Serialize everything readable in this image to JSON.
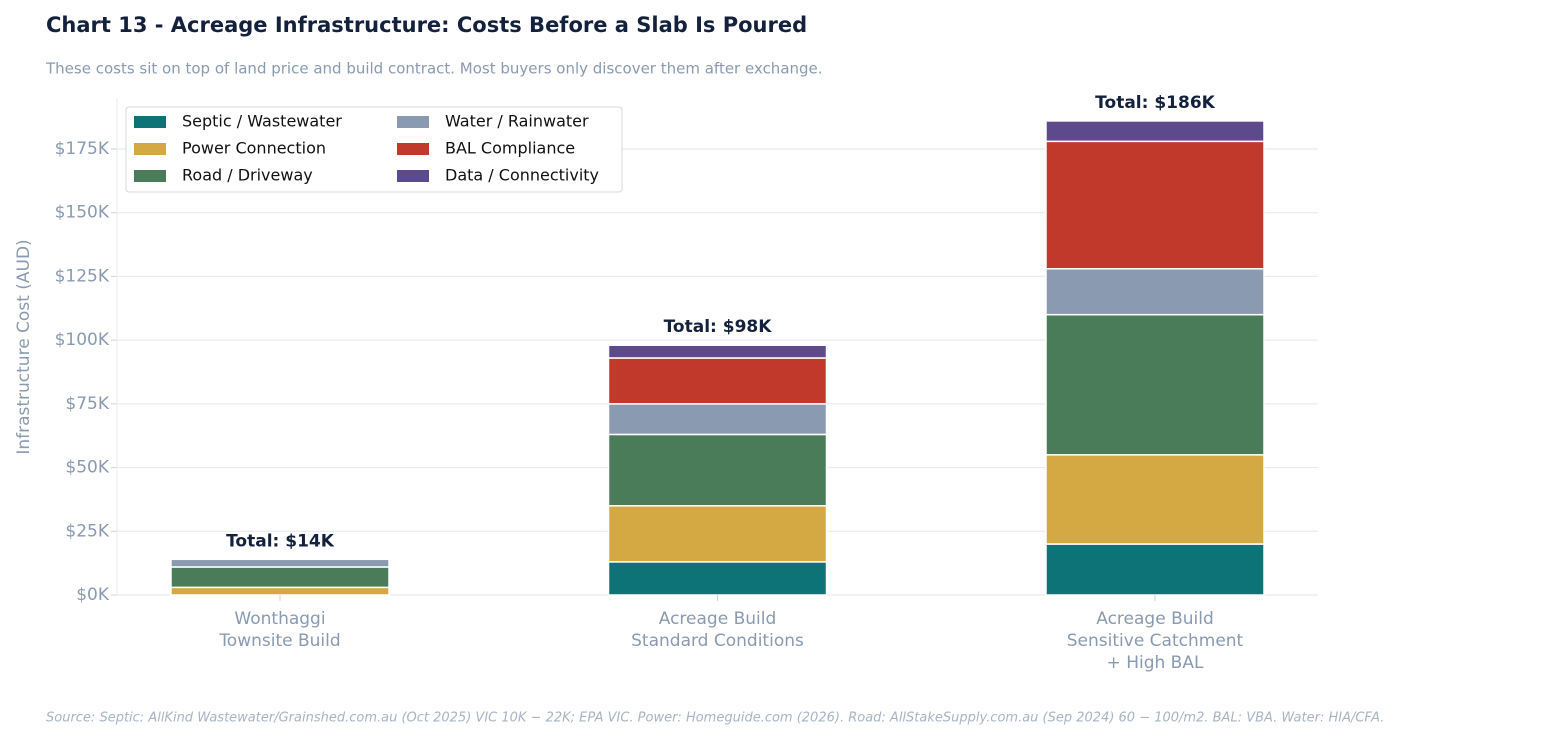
{
  "chart_data": {
    "type": "stacked_bar",
    "title": "Chart 13 - Acreage Infrastructure: Costs Before a Slab Is Poured",
    "subtitle": "These costs sit on top of land price and build contract. Most buyers only discover them after exchange.",
    "y_label": "Infrastructure Cost (AUD)",
    "source": "Source: Septic: AllKind Wastewater/Grainshed.com.au (Oct 2025) VIC 10K − 22K; EPA VIC. Power: Homeguide.com (2026). Road: AllStakeSupply.com.au (Sep 2024) 60 − 100/m2. BAL: VBA. Water: HIA/CFA.",
    "categories": [
      "Wonthaggi\nTownsite Build",
      "Acreage Build\nStandard Conditions",
      "Acreage Build\nSensitive Catchment\n+ High BAL"
    ],
    "series": [
      {
        "name": "Septic / Wastewater",
        "color": "#0e7377",
        "values": [
          0,
          13,
          20
        ]
      },
      {
        "name": "Power Connection",
        "color": "#d4a843",
        "values": [
          3,
          22,
          35
        ]
      },
      {
        "name": "Road / Driveway",
        "color": "#4a7c59",
        "values": [
          8,
          28,
          55
        ]
      },
      {
        "name": "Water / Rainwater",
        "color": "#8a9ab0",
        "values": [
          3,
          12,
          18
        ]
      },
      {
        "name": "BAL Compliance",
        "color": "#c0392b",
        "values": [
          0,
          18,
          50
        ]
      },
      {
        "name": "Data / Connectivity",
        "color": "#5d4a8c",
        "values": [
          0,
          5,
          8
        ]
      }
    ],
    "totals": [
      14,
      98,
      186
    ],
    "total_labels": [
      "Total: $14K",
      "Total: $98K",
      "Total: $186K"
    ],
    "ylim": [
      0,
      195
    ],
    "yticks": [
      {
        "value": 0,
        "label": "$0K"
      },
      {
        "value": 25,
        "label": "$25K"
      },
      {
        "value": 50,
        "label": "$50K"
      },
      {
        "value": 75,
        "label": "$75K"
      },
      {
        "value": 100,
        "label": "$100K"
      },
      {
        "value": 125,
        "label": "$125K"
      },
      {
        "value": 150,
        "label": "$150K"
      },
      {
        "value": 175,
        "label": "$175K"
      }
    ],
    "grid": true,
    "legend": "upper left"
  }
}
